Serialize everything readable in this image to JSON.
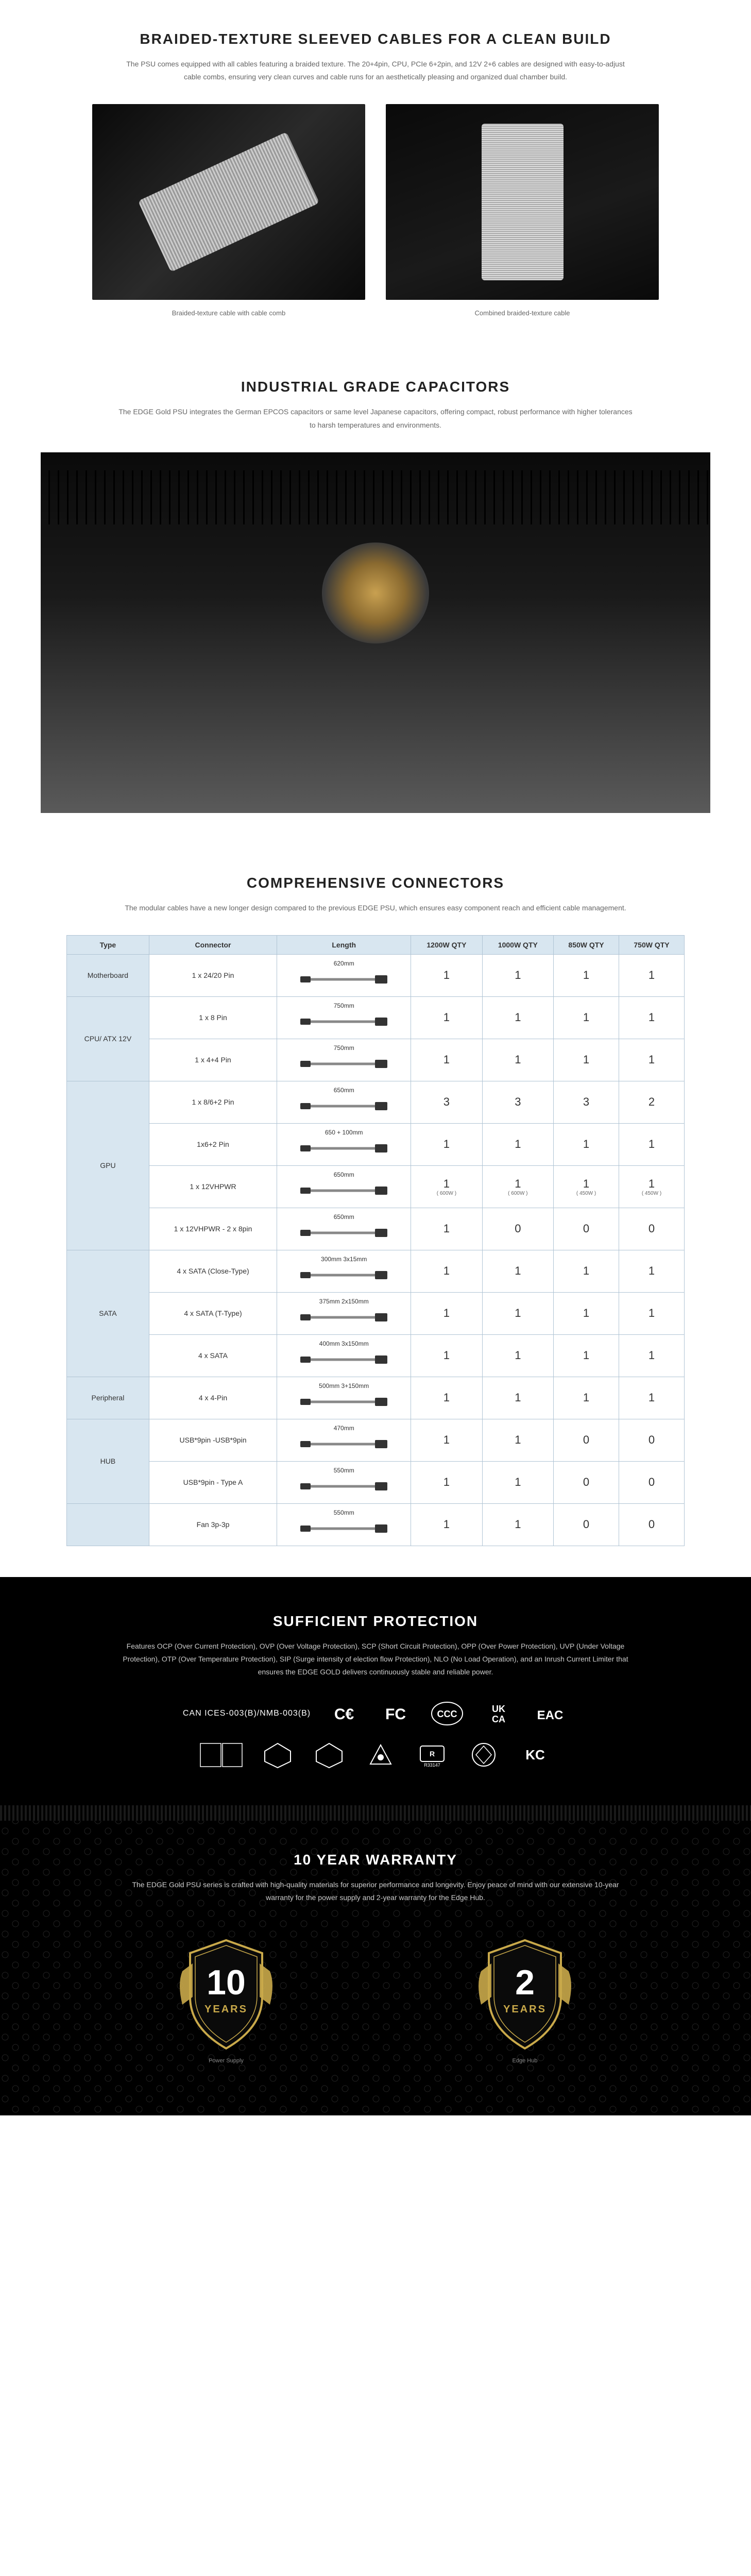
{
  "braided": {
    "title": "BRAIDED-TEXTURE SLEEVED CABLES FOR A CLEAN BUILD",
    "desc": "The PSU comes equipped with all cables featuring a braided texture. The 20+4pin, CPU, PCIe 6+2pin, and 12V 2+6 cables are designed with easy-to-adjust cable combs, ensuring very clean curves and cable runs for an aesthetically pleasing and organized dual chamber build.",
    "caption1": "Braided-texture cable with cable comb",
    "caption2": "Combined braided-texture cable"
  },
  "capacitors": {
    "title": "INDUSTRIAL GRADE CAPACITORS",
    "desc": "The EDGE Gold PSU integrates the German EPCOS capacitors or same level Japanese capacitors, offering compact, robust performance with higher tolerances to harsh temperatures and environments."
  },
  "connectors": {
    "title": "COMPREHENSIVE CONNECTORS",
    "desc": "The modular cables have a new longer design compared to the previous EDGE PSU, which ensures easy component reach and efficient cable management.",
    "headers": [
      "Type",
      "Connector",
      "Length",
      "1200W QTY",
      "1000W QTY",
      "850W QTY",
      "750W QTY"
    ],
    "groups": [
      {
        "type": "Motherboard",
        "rows": [
          {
            "connector": "1 x 24/20 Pin",
            "length": "620mm",
            "q": [
              "1",
              "1",
              "1",
              "1"
            ]
          }
        ]
      },
      {
        "type": "CPU/ ATX 12V",
        "rows": [
          {
            "connector": "1 x 8 Pin",
            "length": "750mm",
            "q": [
              "1",
              "1",
              "1",
              "1"
            ]
          },
          {
            "connector": "1 x 4+4 Pin",
            "length": "750mm",
            "q": [
              "1",
              "1",
              "1",
              "1"
            ]
          }
        ]
      },
      {
        "type": "GPU",
        "rows": [
          {
            "connector": "1 x 8/6+2 Pin",
            "length": "650mm",
            "q": [
              "3",
              "3",
              "3",
              "2"
            ]
          },
          {
            "connector": "1x6+2 Pin",
            "length": "650 + 100mm",
            "q": [
              "1",
              "1",
              "1",
              "1"
            ]
          },
          {
            "connector": "1 x 12VHPWR",
            "length": "650mm",
            "q": [
              "1",
              "1",
              "1",
              "1"
            ],
            "sub": [
              "( 600W )",
              "( 600W )",
              "( 450W )",
              "( 450W )"
            ]
          },
          {
            "connector": "1 x 12VHPWR - 2 x 8pin",
            "length": "650mm",
            "q": [
              "1",
              "0",
              "0",
              "0"
            ]
          }
        ]
      },
      {
        "type": "SATA",
        "rows": [
          {
            "connector": "4 x SATA (Close-Type)",
            "length": "300mm 3x15mm",
            "q": [
              "1",
              "1",
              "1",
              "1"
            ]
          },
          {
            "connector": "4 x SATA (T-Type)",
            "length": "375mm 2x150mm",
            "q": [
              "1",
              "1",
              "1",
              "1"
            ]
          },
          {
            "connector": "4 x SATA",
            "length": "400mm 3x150mm",
            "q": [
              "1",
              "1",
              "1",
              "1"
            ]
          }
        ]
      },
      {
        "type": "Peripheral",
        "rows": [
          {
            "connector": "4 x 4-Pin",
            "length": "500mm  3+150mm",
            "q": [
              "1",
              "1",
              "1",
              "1"
            ]
          }
        ]
      },
      {
        "type": "HUB",
        "rows": [
          {
            "connector": "USB*9pin -USB*9pin",
            "length": "470mm",
            "q": [
              "1",
              "1",
              "0",
              "0"
            ]
          },
          {
            "connector": "USB*9pin - Type A",
            "length": "550mm",
            "q": [
              "1",
              "1",
              "0",
              "0"
            ]
          }
        ]
      },
      {
        "type": "",
        "rows": [
          {
            "connector": "Fan 3p-3p",
            "length": "550mm",
            "q": [
              "1",
              "1",
              "0",
              "0"
            ]
          }
        ]
      }
    ]
  },
  "protection": {
    "title": "SUFFICIENT PROTECTION",
    "desc": "Features OCP (Over Current Protection), OVP (Over Voltage Protection), SCP (Short Circuit Protection), OPP (Over Power Protection), UVP (Under Voltage Protection), OTP (Over Temperature Protection), SIP (Surge intensity of election flow Protection), NLO (No Load Operation), and an Inrush Current Limiter that ensures the EDGE GOLD delivers continuously stable and reliable power.",
    "cert_label": "CAN ICES-003(B)/NMB-003(B)",
    "certs": [
      "CE",
      "FC",
      "CCC",
      "UKCA",
      "EAC",
      "TUV1",
      "TUV2",
      "TUV3",
      "RCM",
      "R33147",
      "PSE",
      "KC"
    ]
  },
  "warranty": {
    "title": "10 YEAR WARRANTY",
    "desc": "The EDGE Gold PSU series is crafted with high-quality materials for superior performance and longevity. Enjoy peace of mind with our extensive 10-year warranty for the power supply and 2-year warranty for the Edge Hub.",
    "badge1_num": "10",
    "badge1_txt": "YEARS",
    "badge1_sub": "Power Supply",
    "badge2_num": "2",
    "badge2_txt": "YEARS",
    "badge2_sub": "Edge Hub",
    "shield_stroke": "#c9a94a",
    "shield_fill": "#0a0a0a"
  },
  "colors": {
    "table_header_bg": "#d8e6f0",
    "table_border": "#b0c4d4"
  }
}
